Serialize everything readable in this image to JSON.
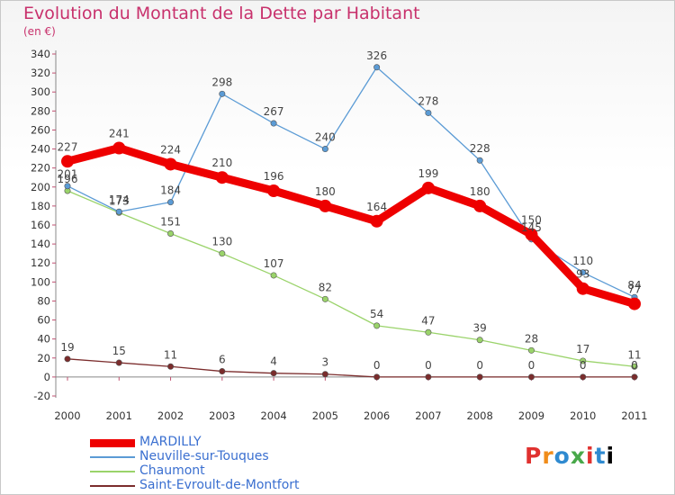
{
  "title": "Evolution du Montant de la Dette par Habitant",
  "subtitle": "(en €)",
  "logo": "Proxiti",
  "chart_data": {
    "type": "line",
    "x": [
      "2000",
      "2001",
      "2002",
      "2003",
      "2004",
      "2005",
      "2006",
      "2007",
      "2008",
      "2009",
      "2010",
      "2011"
    ],
    "ylim": [
      -20,
      340
    ],
    "yticks": [
      -20,
      0,
      20,
      40,
      60,
      80,
      100,
      120,
      140,
      160,
      180,
      200,
      220,
      240,
      260,
      280,
      300,
      320,
      340
    ],
    "grid": false,
    "legend": "bottom-left",
    "series": [
      {
        "name": "MARDILLY",
        "color": "#ee0000",
        "values": [
          227,
          241,
          224,
          210,
          196,
          180,
          164,
          199,
          180,
          150,
          93,
          77
        ]
      },
      {
        "name": "Neuville-sur-Touques",
        "color": "#5b9bd5",
        "values": [
          201,
          174,
          184,
          298,
          267,
          240,
          326,
          278,
          228,
          145,
          110,
          84
        ]
      },
      {
        "name": "Chaumont",
        "color": "#9ad36a",
        "values": [
          196,
          173,
          151,
          130,
          107,
          82,
          54,
          47,
          39,
          28,
          17,
          11
        ]
      },
      {
        "name": "Saint-Evroult-de-Montfort",
        "color": "#7b2c2c",
        "values": [
          19,
          15,
          11,
          6,
          4,
          3,
          0,
          0,
          0,
          0,
          0,
          0
        ]
      }
    ]
  }
}
